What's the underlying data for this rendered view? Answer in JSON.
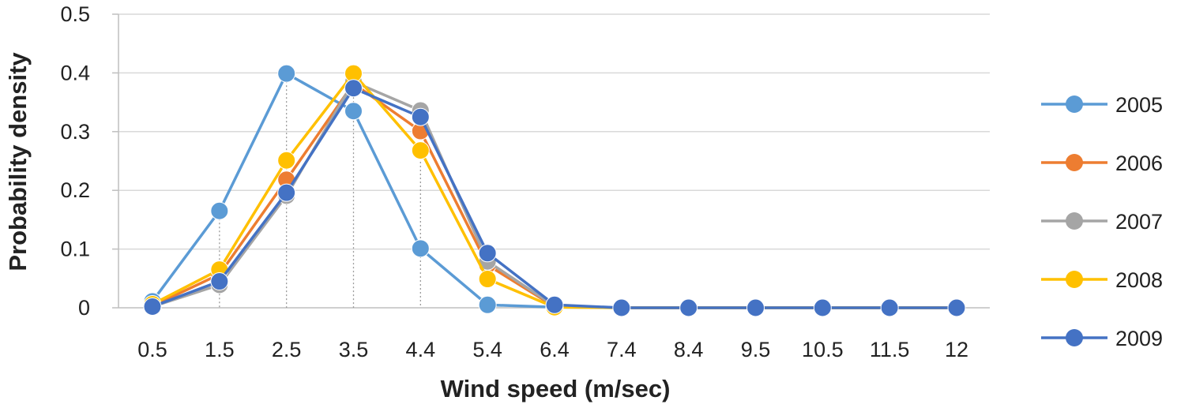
{
  "chart_data": {
    "type": "line",
    "title": "",
    "xlabel": "Wind speed (m/sec)",
    "ylabel": "Probability density",
    "categories": [
      "0.5",
      "1.5",
      "2.5",
      "3.5",
      "4.4",
      "5.4",
      "6.4",
      "7.4",
      "8.4",
      "9.5",
      "10.5",
      "11.5",
      "12"
    ],
    "yticks": [
      "0",
      "0.1",
      "0.2",
      "0.3",
      "0.4",
      "0.5"
    ],
    "ylim": [
      0,
      0.5
    ],
    "grid": true,
    "legend_position": "right",
    "series": [
      {
        "name": "2005",
        "color": "#5B9BD5",
        "values": [
          0.011,
          0.165,
          0.399,
          0.335,
          0.101,
          0.005,
          0.001,
          0,
          0,
          0,
          0,
          0,
          0
        ]
      },
      {
        "name": "2006",
        "color": "#ED7D31",
        "values": [
          0.003,
          0.057,
          0.218,
          0.382,
          0.301,
          0.073,
          0.002,
          0,
          0,
          0,
          0,
          0,
          0
        ]
      },
      {
        "name": "2007",
        "color": "#A5A5A5",
        "values": [
          0.002,
          0.039,
          0.191,
          0.385,
          0.336,
          0.079,
          0.003,
          0,
          0,
          0,
          0,
          0,
          0
        ]
      },
      {
        "name": "2008",
        "color": "#FFC000",
        "values": [
          0.006,
          0.065,
          0.251,
          0.399,
          0.268,
          0.049,
          0.001,
          0,
          0,
          0,
          0,
          0,
          0
        ]
      },
      {
        "name": "2009",
        "color": "#4472C4",
        "values": [
          0.002,
          0.045,
          0.196,
          0.374,
          0.325,
          0.093,
          0.005,
          0,
          0,
          0,
          0,
          0,
          0
        ]
      }
    ]
  }
}
